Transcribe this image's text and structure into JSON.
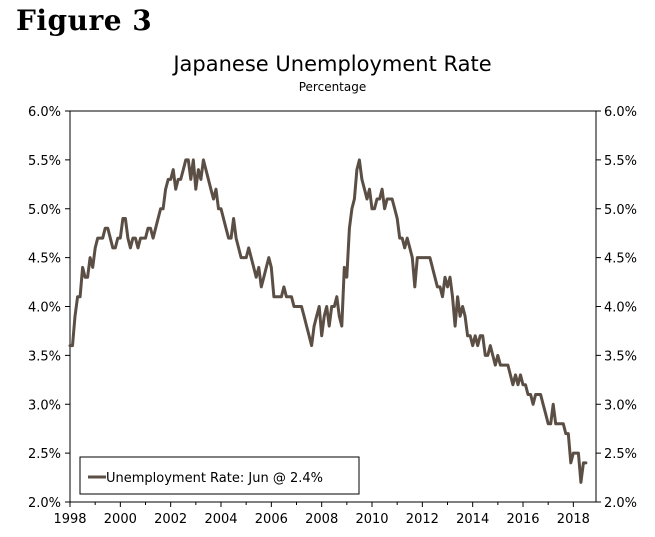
{
  "figure_label": "Figure 3",
  "chart_data": {
    "type": "line",
    "title": "Japanese Unemployment Rate",
    "subtitle": "Percentage",
    "xlabel": "",
    "ylabel": "",
    "xlim": [
      1998,
      2018.9
    ],
    "ylim": [
      2.0,
      6.0
    ],
    "x_ticks": [
      "1998",
      "2000",
      "2002",
      "2004",
      "2006",
      "2008",
      "2010",
      "2012",
      "2014",
      "2016",
      "2018"
    ],
    "y_ticks": [
      "2.0%",
      "2.5%",
      "3.0%",
      "3.5%",
      "4.0%",
      "4.5%",
      "5.0%",
      "5.5%",
      "6.0%"
    ],
    "y_ticks_right": true,
    "grid": false,
    "legend_position": "bottom-left",
    "line_color": "#5b4f45",
    "series": [
      {
        "name": "Unemployment Rate: Jun @ 2.4%",
        "x": [
          1998.0,
          1998.1,
          1998.2,
          1998.3,
          1998.4,
          1998.5,
          1998.6,
          1998.7,
          1998.8,
          1998.9,
          1999.0,
          1999.1,
          1999.2,
          1999.3,
          1999.4,
          1999.5,
          1999.6,
          1999.7,
          1999.8,
          1999.9,
          2000.0,
          2000.1,
          2000.2,
          2000.3,
          2000.4,
          2000.5,
          2000.6,
          2000.7,
          2000.8,
          2000.9,
          2001.0,
          2001.1,
          2001.2,
          2001.3,
          2001.4,
          2001.5,
          2001.6,
          2001.7,
          2001.8,
          2001.9,
          2002.0,
          2002.1,
          2002.2,
          2002.3,
          2002.4,
          2002.5,
          2002.6,
          2002.7,
          2002.8,
          2002.9,
          2003.0,
          2003.1,
          2003.2,
          2003.3,
          2003.4,
          2003.5,
          2003.6,
          2003.7,
          2003.8,
          2003.9,
          2004.0,
          2004.1,
          2004.2,
          2004.3,
          2004.4,
          2004.5,
          2004.6,
          2004.7,
          2004.8,
          2004.9,
          2005.0,
          2005.1,
          2005.2,
          2005.3,
          2005.4,
          2005.5,
          2005.6,
          2005.7,
          2005.8,
          2005.9,
          2006.0,
          2006.1,
          2006.2,
          2006.3,
          2006.4,
          2006.5,
          2006.6,
          2006.7,
          2006.8,
          2006.9,
          2007.0,
          2007.1,
          2007.2,
          2007.3,
          2007.4,
          2007.5,
          2007.6,
          2007.7,
          2007.8,
          2007.9,
          2008.0,
          2008.1,
          2008.2,
          2008.3,
          2008.4,
          2008.5,
          2008.6,
          2008.7,
          2008.8,
          2008.9,
          2009.0,
          2009.1,
          2009.2,
          2009.3,
          2009.4,
          2009.5,
          2009.6,
          2009.7,
          2009.8,
          2009.9,
          2010.0,
          2010.1,
          2010.2,
          2010.3,
          2010.4,
          2010.5,
          2010.6,
          2010.7,
          2010.8,
          2010.9,
          2011.0,
          2011.1,
          2011.2,
          2011.3,
          2011.4,
          2011.5,
          2011.6,
          2011.7,
          2011.8,
          2011.9,
          2012.0,
          2012.1,
          2012.2,
          2012.3,
          2012.4,
          2012.5,
          2012.6,
          2012.7,
          2012.8,
          2012.9,
          2013.0,
          2013.1,
          2013.2,
          2013.3,
          2013.4,
          2013.5,
          2013.6,
          2013.7,
          2013.8,
          2013.9,
          2014.0,
          2014.1,
          2014.2,
          2014.3,
          2014.4,
          2014.5,
          2014.6,
          2014.7,
          2014.8,
          2014.9,
          2015.0,
          2015.1,
          2015.2,
          2015.3,
          2015.4,
          2015.5,
          2015.6,
          2015.7,
          2015.8,
          2015.9,
          2016.0,
          2016.1,
          2016.2,
          2016.3,
          2016.4,
          2016.5,
          2016.6,
          2016.7,
          2016.8,
          2016.9,
          2017.0,
          2017.1,
          2017.2,
          2017.3,
          2017.4,
          2017.5,
          2017.6,
          2017.7,
          2017.8,
          2017.9,
          2018.0,
          2018.1,
          2018.2,
          2018.3,
          2018.4,
          2018.5
        ],
        "values": [
          3.6,
          3.6,
          3.9,
          4.1,
          4.1,
          4.4,
          4.3,
          4.3,
          4.5,
          4.4,
          4.6,
          4.7,
          4.7,
          4.7,
          4.8,
          4.8,
          4.7,
          4.6,
          4.6,
          4.7,
          4.7,
          4.9,
          4.9,
          4.7,
          4.6,
          4.7,
          4.7,
          4.6,
          4.7,
          4.7,
          4.7,
          4.8,
          4.8,
          4.7,
          4.8,
          4.9,
          5.0,
          5.0,
          5.2,
          5.3,
          5.3,
          5.4,
          5.2,
          5.3,
          5.3,
          5.4,
          5.5,
          5.5,
          5.3,
          5.5,
          5.2,
          5.4,
          5.3,
          5.5,
          5.4,
          5.3,
          5.2,
          5.1,
          5.2,
          5.0,
          5.0,
          4.9,
          4.8,
          4.7,
          4.7,
          4.9,
          4.7,
          4.6,
          4.5,
          4.5,
          4.5,
          4.6,
          4.5,
          4.4,
          4.3,
          4.4,
          4.2,
          4.3,
          4.4,
          4.5,
          4.4,
          4.1,
          4.1,
          4.1,
          4.1,
          4.2,
          4.1,
          4.1,
          4.1,
          4.0,
          4.0,
          4.0,
          4.0,
          3.9,
          3.8,
          3.7,
          3.6,
          3.8,
          3.9,
          4.0,
          3.7,
          3.9,
          4.0,
          3.8,
          4.0,
          4.0,
          4.1,
          3.9,
          3.8,
          4.4,
          4.3,
          4.8,
          5.0,
          5.1,
          5.4,
          5.5,
          5.3,
          5.2,
          5.1,
          5.2,
          5.0,
          5.0,
          5.1,
          5.1,
          5.2,
          5.0,
          5.1,
          5.1,
          5.1,
          5.0,
          4.9,
          4.7,
          4.7,
          4.6,
          4.7,
          4.6,
          4.5,
          4.2,
          4.5,
          4.5,
          4.5,
          4.5,
          4.5,
          4.5,
          4.4,
          4.3,
          4.2,
          4.2,
          4.1,
          4.3,
          4.2,
          4.3,
          4.1,
          3.8,
          4.1,
          3.9,
          4.0,
          3.9,
          3.7,
          3.7,
          3.6,
          3.7,
          3.6,
          3.7,
          3.7,
          3.5,
          3.5,
          3.6,
          3.5,
          3.4,
          3.5,
          3.4,
          3.4,
          3.4,
          3.4,
          3.3,
          3.2,
          3.3,
          3.2,
          3.3,
          3.2,
          3.2,
          3.1,
          3.1,
          3.0,
          3.1,
          3.1,
          3.1,
          3.0,
          2.9,
          2.8,
          2.8,
          3.0,
          2.8,
          2.8,
          2.8,
          2.8,
          2.7,
          2.7,
          2.4,
          2.5,
          2.5,
          2.5,
          2.2,
          2.4,
          2.4
        ]
      }
    ]
  }
}
